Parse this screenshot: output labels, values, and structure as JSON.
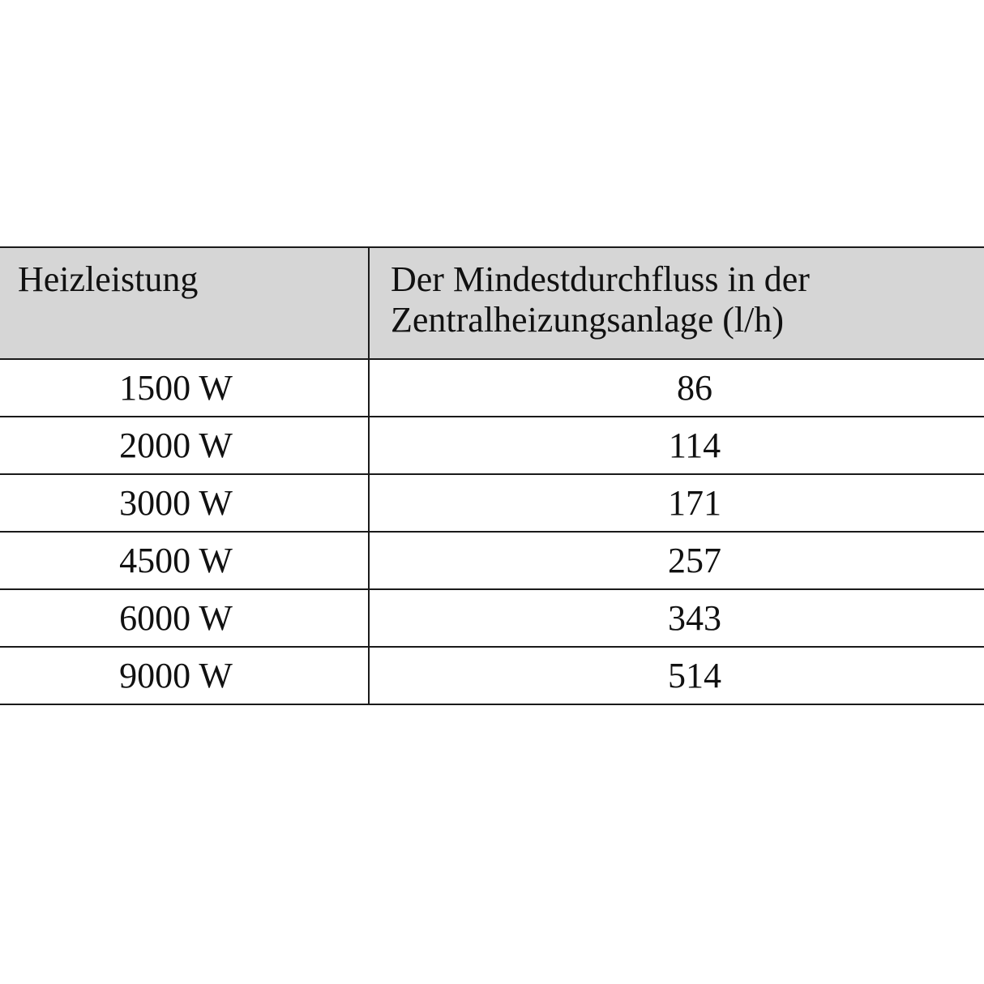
{
  "table": {
    "headers": [
      "Heizleistung",
      "Der Mindestdurchfluss in der Zentralheizungsanlage (l/h)"
    ],
    "rows": [
      [
        "1500 W",
        "86"
      ],
      [
        "2000 W",
        "114"
      ],
      [
        "3000 W",
        "171"
      ],
      [
        "4500 W",
        "257"
      ],
      [
        "6000 W",
        "343"
      ],
      [
        "9000 W",
        "514"
      ]
    ],
    "header_bg": "#d6d6d6"
  }
}
